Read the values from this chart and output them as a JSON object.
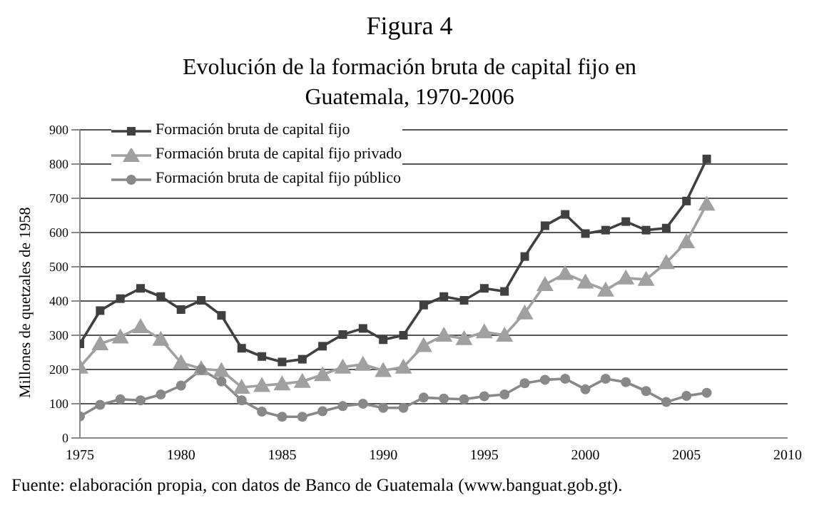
{
  "chart_data": {
    "type": "line",
    "title": "Figura 4",
    "subtitle": "Evolución de la formación bruta de capital fijo en Guatemala, 1970-2006",
    "ylabel": "Millones de quetzales de 1958",
    "annotations": [
      "Fuente: elaboración propia, con datos de Banco de Guatemala (www.banguat.gob.gt)."
    ],
    "x": [
      1975,
      1976,
      1977,
      1978,
      1979,
      1980,
      1981,
      1982,
      1983,
      1984,
      1985,
      1986,
      1987,
      1988,
      1989,
      1990,
      1991,
      1992,
      1993,
      1994,
      1995,
      1996,
      1997,
      1998,
      1999,
      2000,
      2001,
      2002,
      2003,
      2004,
      2005,
      2006
    ],
    "series": [
      {
        "name": "Formación bruta de capital fijo",
        "color": "#404040",
        "marker": "square",
        "values": [
          275,
          372,
          407,
          437,
          413,
          375,
          402,
          358,
          262,
          238,
          222,
          230,
          268,
          302,
          320,
          287,
          300,
          388,
          413,
          402,
          437,
          428,
          530,
          620,
          653,
          597,
          607,
          632,
          607,
          613,
          692,
          815
        ]
      },
      {
        "name": "Formación bruta de capital fijo privado",
        "color": "#a0a0a0",
        "marker": "triangle",
        "values": [
          207,
          275,
          295,
          325,
          288,
          220,
          202,
          197,
          148,
          153,
          158,
          165,
          185,
          207,
          215,
          197,
          207,
          270,
          300,
          290,
          310,
          300,
          365,
          448,
          480,
          455,
          432,
          467,
          463,
          512,
          573,
          683
        ]
      },
      {
        "name": "Formación bruta de capital fijo público",
        "color": "#888888",
        "marker": "circle",
        "values": [
          63,
          97,
          113,
          110,
          127,
          153,
          200,
          165,
          110,
          77,
          62,
          62,
          78,
          93,
          100,
          88,
          88,
          118,
          115,
          113,
          122,
          127,
          160,
          170,
          173,
          142,
          173,
          163,
          137,
          105,
          123,
          132
        ]
      }
    ],
    "xlim": [
      1975,
      2010
    ],
    "xticks": [
      1975,
      1980,
      1985,
      1990,
      1995,
      2000,
      2005,
      2010
    ],
    "ylim": [
      0,
      900
    ],
    "yticks": [
      0,
      100,
      200,
      300,
      400,
      500,
      600,
      700,
      800,
      900
    ],
    "grid": "y",
    "legend": "top left",
    "line_style": "solid"
  }
}
